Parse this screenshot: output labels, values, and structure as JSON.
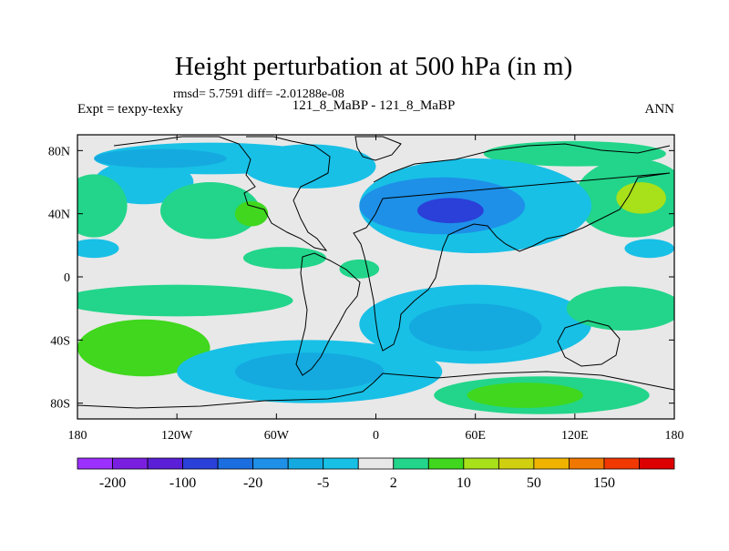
{
  "chart_data": {
    "type": "heatmap",
    "title": "Height perturbation at 500 hPa (in m)",
    "stats_text": "rmsd= 5.7591 diff= -2.01288e-08",
    "left_label": "Expt = texpy-texky",
    "center_label": "121_8_MaBP - 121_8_MaBP",
    "right_label": "ANN",
    "x_tick_labels": [
      "180",
      "120W",
      "60W",
      "0",
      "60E",
      "120E",
      "180"
    ],
    "x_tick_values": [
      -180,
      -120,
      -60,
      0,
      60,
      120,
      180
    ],
    "y_tick_labels": [
      "80N",
      "40N",
      "0",
      "40S",
      "80S"
    ],
    "y_tick_values": [
      80,
      40,
      0,
      -40,
      -80
    ],
    "xlim": [
      -180,
      180
    ],
    "ylim": [
      -90,
      90
    ],
    "colorbar_labels": [
      "-200",
      "-100",
      "-20",
      "-5",
      "2",
      "10",
      "50",
      "150"
    ],
    "colorbar_label_bins": [
      1,
      3,
      5,
      7,
      9,
      11,
      13,
      15
    ],
    "colorbar_colors": [
      "#9b30ff",
      "#7a1fe0",
      "#5a1fd6",
      "#2a40d8",
      "#1a6ee0",
      "#1e90e8",
      "#14aadf",
      "#18c0e6",
      "#e8e8e8",
      "#22d58a",
      "#40d71e",
      "#a8e01a",
      "#d0d010",
      "#f0b400",
      "#f07800",
      "#f03800",
      "#dd0000"
    ],
    "fields": [
      {
        "name": "cyan band north",
        "lon": -100,
        "lat": 75,
        "rx": 70,
        "ry": 10,
        "level": 7
      },
      {
        "name": "cyan band north 2",
        "lon": -140,
        "lat": 60,
        "rx": 30,
        "ry": 14,
        "level": 7
      },
      {
        "name": "blue patch north",
        "lon": -130,
        "lat": 75,
        "rx": 40,
        "ry": 6,
        "level": 6
      },
      {
        "name": "cyan north atlantic",
        "lon": -40,
        "lat": 70,
        "rx": 40,
        "ry": 14,
        "level": 7
      },
      {
        "name": "green north pacific",
        "lon": 120,
        "lat": 78,
        "rx": 55,
        "ry": 8,
        "level": 9
      },
      {
        "name": "green east asia",
        "lon": 155,
        "lat": 50,
        "rx": 35,
        "ry": 25,
        "level": 9
      },
      {
        "name": "yellow-green east asia",
        "lon": 160,
        "lat": 50,
        "rx": 15,
        "ry": 10,
        "level": 11
      },
      {
        "name": "green west north america",
        "lon": -170,
        "lat": 45,
        "rx": 20,
        "ry": 20,
        "level": 9
      },
      {
        "name": "green central north america",
        "lon": -100,
        "lat": 42,
        "rx": 30,
        "ry": 18,
        "level": 9
      },
      {
        "name": "light green central north america",
        "lon": -75,
        "lat": 40,
        "rx": 10,
        "ry": 8,
        "level": 10
      },
      {
        "name": "cyan eurasia",
        "lon": 60,
        "lat": 45,
        "rx": 70,
        "ry": 30,
        "level": 7
      },
      {
        "name": "blue eurasia",
        "lon": 40,
        "lat": 45,
        "rx": 50,
        "ry": 18,
        "level": 5
      },
      {
        "name": "dark blue eurasia",
        "lon": 45,
        "lat": 42,
        "rx": 20,
        "ry": 8,
        "level": 3
      },
      {
        "name": "cyan eastern pacific",
        "lon": -170,
        "lat": 18,
        "rx": 15,
        "ry": 6,
        "level": 7
      },
      {
        "name": "cyan western pacific",
        "lon": 165,
        "lat": 18,
        "rx": 15,
        "ry": 6,
        "level": 7
      },
      {
        "name": "green north atlantic subtropic",
        "lon": -55,
        "lat": 12,
        "rx": 25,
        "ry": 7,
        "level": 9
      },
      {
        "name": "green east atlantic subtropic",
        "lon": -10,
        "lat": 5,
        "rx": 12,
        "ry": 6,
        "level": 9
      },
      {
        "name": "green south pacific band",
        "lon": -120,
        "lat": -15,
        "rx": 70,
        "ry": 10,
        "level": 9
      },
      {
        "name": "green south pacific core",
        "lon": -140,
        "lat": -45,
        "rx": 40,
        "ry": 18,
        "level": 10
      },
      {
        "name": "cyan southern band",
        "lon": -40,
        "lat": -60,
        "rx": 80,
        "ry": 20,
        "level": 7
      },
      {
        "name": "blue southern atlantic",
        "lon": -40,
        "lat": -60,
        "rx": 45,
        "ry": 12,
        "level": 6
      },
      {
        "name": "cyan south indian",
        "lon": 60,
        "lat": -30,
        "rx": 70,
        "ry": 25,
        "level": 7
      },
      {
        "name": "blue south indian",
        "lon": 60,
        "lat": -32,
        "rx": 40,
        "ry": 15,
        "level": 6
      },
      {
        "name": "green south indian east",
        "lon": 150,
        "lat": -20,
        "rx": 35,
        "ry": 14,
        "level": 9
      },
      {
        "name": "green antarctic pacific",
        "lon": 100,
        "lat": -75,
        "rx": 65,
        "ry": 12,
        "level": 9
      },
      {
        "name": "green lime antarctic",
        "lon": 90,
        "lat": -75,
        "rx": 35,
        "ry": 8,
        "level": 10
      }
    ]
  }
}
